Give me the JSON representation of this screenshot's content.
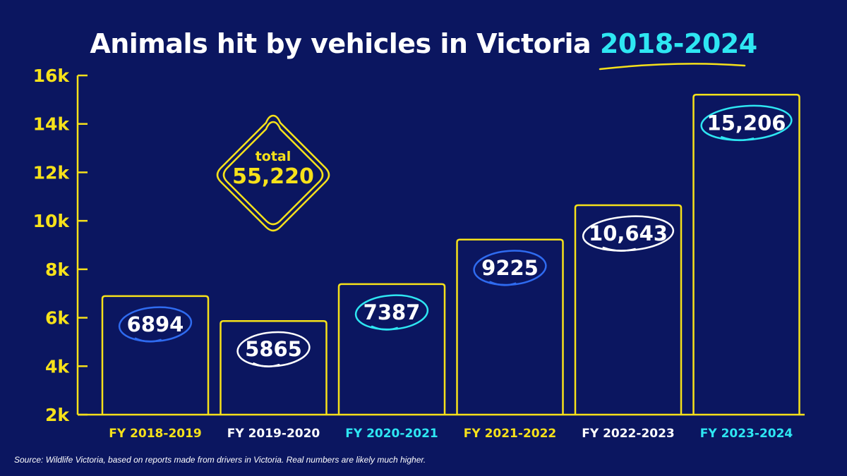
{
  "title": {
    "main": "Animals hit by vehicles in Victoria",
    "highlight": "2018-2024"
  },
  "total_badge": {
    "label": "total",
    "value": "55,220"
  },
  "source": "Source: Wildlife Victoria, based on reports made from drivers in Victoria. Real numbers are likely much higher.",
  "colors": {
    "background": "#0b1660",
    "yellow": "#f6e11a",
    "cyan": "#2ee6f2",
    "blue": "#2f6bf0",
    "white": "#ffffff"
  },
  "chart_data": {
    "type": "bar",
    "title": "Animals hit by vehicles in Victoria 2018-2024",
    "xlabel": "",
    "ylabel": "",
    "categories": [
      "FY 2018-2019",
      "FY 2019-2020",
      "FY 2020-2021",
      "FY 2021-2022",
      "FY 2022-2023",
      "FY 2023-2024"
    ],
    "values": [
      6894,
      5865,
      7387,
      9225,
      10643,
      15206
    ],
    "value_labels": [
      "6894",
      "5865",
      "7387",
      "9225",
      "10,643",
      "15,206"
    ],
    "category_colors": [
      "yellow",
      "white",
      "cyan",
      "yellow",
      "white",
      "cyan"
    ],
    "circle_colors": [
      "blue",
      "white",
      "cyan",
      "blue",
      "white",
      "cyan"
    ],
    "ylim": [
      2000,
      16000
    ],
    "yticks": [
      2000,
      4000,
      6000,
      8000,
      10000,
      12000,
      14000,
      16000
    ],
    "ytick_labels": [
      "2k",
      "4k",
      "6k",
      "8k",
      "10k",
      "12k",
      "14k",
      "16k"
    ],
    "grid": false,
    "legend": "none"
  }
}
